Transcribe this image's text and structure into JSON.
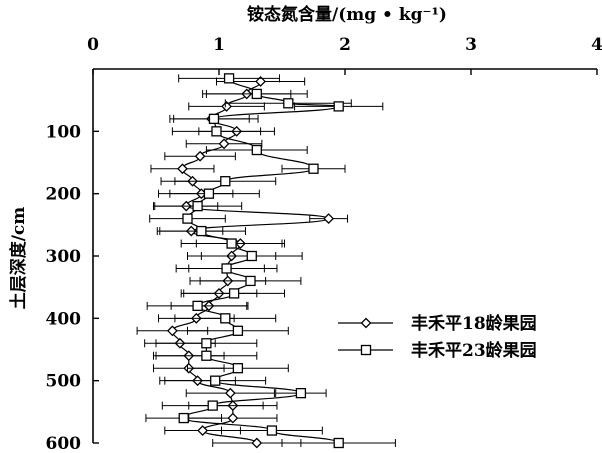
{
  "chart_data": {
    "type": "line",
    "xlabel": "铵态氮含量/(mg • kg⁻¹)",
    "ylabel": "土层深度/cm",
    "xlim": [
      0,
      4
    ],
    "ylim": [
      0,
      600
    ],
    "x_axis_position": "top",
    "y_axis_inverted": true,
    "x_ticks": [
      "0",
      "1",
      "2",
      "3",
      "4"
    ],
    "y_ticks": [
      "100",
      "200",
      "300",
      "400",
      "500",
      "600"
    ],
    "grid": false,
    "legend_position": "right",
    "series": [
      {
        "name": "丰禾平18龄果园",
        "marker": "diamond",
        "points": [
          {
            "depth": 20,
            "value": 1.33,
            "error": 0.35
          },
          {
            "depth": 40,
            "value": 1.22,
            "error": 0.35
          },
          {
            "depth": 60,
            "value": 1.06,
            "error": 0.3
          },
          {
            "depth": 80,
            "value": 0.94,
            "error": 0.3
          },
          {
            "depth": 100,
            "value": 1.14,
            "error": 0.3
          },
          {
            "depth": 120,
            "value": 1.04,
            "error": 0.3
          },
          {
            "depth": 140,
            "value": 0.85,
            "error": 0.28
          },
          {
            "depth": 160,
            "value": 0.71,
            "error": 0.25
          },
          {
            "depth": 180,
            "value": 0.79,
            "error": 0.25
          },
          {
            "depth": 200,
            "value": 0.86,
            "error": 0.25
          },
          {
            "depth": 220,
            "value": 0.74,
            "error": 0.25
          },
          {
            "depth": 240,
            "value": 1.87,
            "error": 0.15
          },
          {
            "depth": 260,
            "value": 0.78,
            "error": 0.25
          },
          {
            "depth": 280,
            "value": 1.17,
            "error": 0.35
          },
          {
            "depth": 300,
            "value": 1.1,
            "error": 0.35
          },
          {
            "depth": 320,
            "value": 1.06,
            "error": 0.3
          },
          {
            "depth": 340,
            "value": 1.07,
            "error": 0.3
          },
          {
            "depth": 360,
            "value": 1.0,
            "error": 0.3
          },
          {
            "depth": 380,
            "value": 0.92,
            "error": 0.3
          },
          {
            "depth": 400,
            "value": 0.82,
            "error": 0.3
          },
          {
            "depth": 420,
            "value": 0.63,
            "error": 0.28
          },
          {
            "depth": 440,
            "value": 0.69,
            "error": 0.28
          },
          {
            "depth": 460,
            "value": 0.76,
            "error": 0.28
          },
          {
            "depth": 480,
            "value": 0.76,
            "error": 0.28
          },
          {
            "depth": 500,
            "value": 0.83,
            "error": 0.3
          },
          {
            "depth": 520,
            "value": 1.09,
            "error": 0.35
          },
          {
            "depth": 540,
            "value": 1.11,
            "error": 0.35
          },
          {
            "depth": 560,
            "value": 1.11,
            "error": 0.35
          },
          {
            "depth": 580,
            "value": 0.87,
            "error": 0.3
          },
          {
            "depth": 600,
            "value": 1.3,
            "error": 0.35
          }
        ]
      },
      {
        "name": "丰禾平23龄果园",
        "marker": "square",
        "points": [
          {
            "depth": 15,
            "value": 1.08,
            "error": 0.4
          },
          {
            "depth": 40,
            "value": 1.3,
            "error": 0.4
          },
          {
            "depth": 55,
            "value": 1.55,
            "error": 0.5
          },
          {
            "depth": 60,
            "value": 1.95,
            "error": 0.35
          },
          {
            "depth": 80,
            "value": 0.96,
            "error": 0.35
          },
          {
            "depth": 100,
            "value": 0.98,
            "error": 0.35
          },
          {
            "depth": 130,
            "value": 1.3,
            "error": 0.4
          },
          {
            "depth": 160,
            "value": 1.75,
            "error": 0.25
          },
          {
            "depth": 180,
            "value": 1.05,
            "error": 0.4
          },
          {
            "depth": 200,
            "value": 0.92,
            "error": 0.4
          },
          {
            "depth": 220,
            "value": 0.83,
            "error": 0.35
          },
          {
            "depth": 240,
            "value": 0.75,
            "error": 0.3
          },
          {
            "depth": 260,
            "value": 0.86,
            "error": 0.35
          },
          {
            "depth": 280,
            "value": 1.1,
            "error": 0.4
          },
          {
            "depth": 300,
            "value": 1.26,
            "error": 0.4
          },
          {
            "depth": 320,
            "value": 1.06,
            "error": 0.4
          },
          {
            "depth": 340,
            "value": 1.25,
            "error": 0.4
          },
          {
            "depth": 360,
            "value": 1.12,
            "error": 0.4
          },
          {
            "depth": 380,
            "value": 0.83,
            "error": 0.4
          },
          {
            "depth": 400,
            "value": 1.05,
            "error": 0.4
          },
          {
            "depth": 420,
            "value": 1.15,
            "error": 0.4
          },
          {
            "depth": 440,
            "value": 0.9,
            "error": 0.4
          },
          {
            "depth": 460,
            "value": 0.9,
            "error": 0.4
          },
          {
            "depth": 480,
            "value": 1.15,
            "error": 0.4
          },
          {
            "depth": 500,
            "value": 0.97,
            "error": 0.4
          },
          {
            "depth": 520,
            "value": 1.65,
            "error": 0.2
          },
          {
            "depth": 540,
            "value": 0.95,
            "error": 0.4
          },
          {
            "depth": 560,
            "value": 0.72,
            "error": 0.3
          },
          {
            "depth": 580,
            "value": 1.42,
            "error": 0.4
          },
          {
            "depth": 600,
            "value": 1.95,
            "error": 0.45
          }
        ]
      }
    ]
  }
}
